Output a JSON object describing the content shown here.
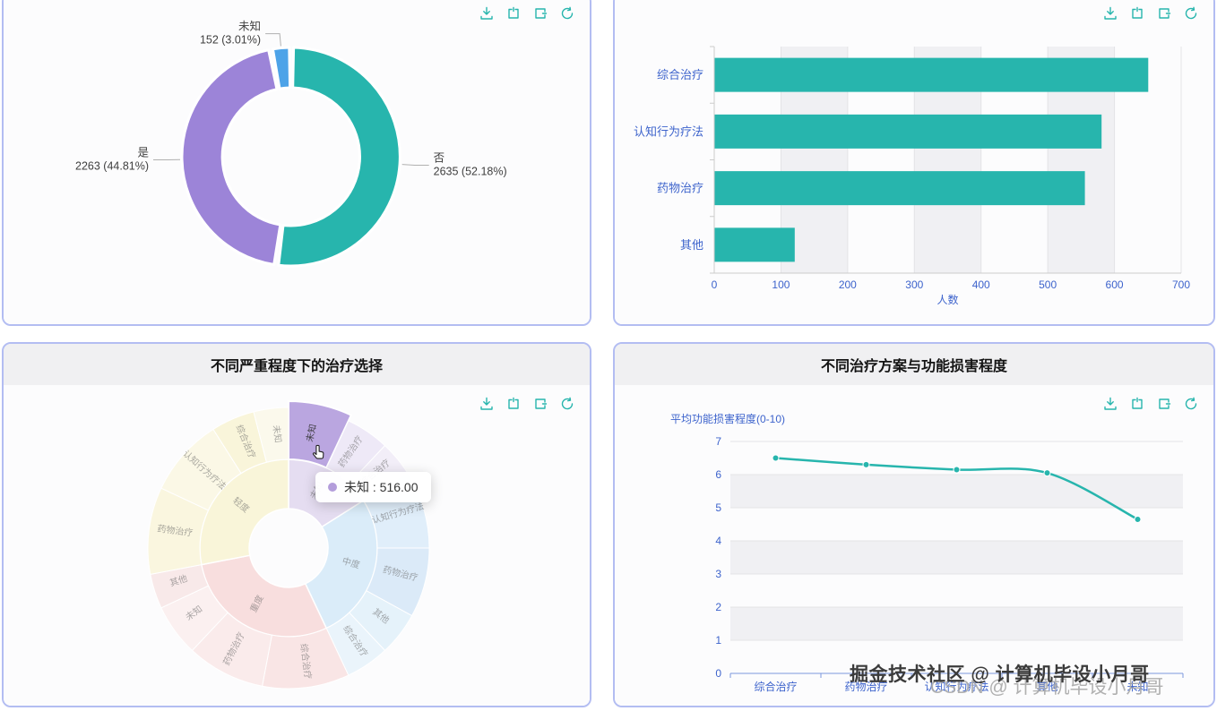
{
  "accent": {
    "teal": "#27b5ad",
    "axis_label_blue": "#3d63cc",
    "panel_border": "#b3bdf2",
    "grid_line": "#e3e3e6",
    "split_area": "#f0f0f3"
  },
  "toolbox": {
    "icons": [
      "save-image-icon",
      "data-zoom-icon",
      "data-view-icon",
      "restore-icon"
    ]
  },
  "chart_data": [
    {
      "type": "pie",
      "panel": "top-left",
      "shape": "donut",
      "items": [
        {
          "name": "未知",
          "value": 152,
          "percent": 3.01,
          "color": "#4da3e8"
        },
        {
          "name": "否",
          "value": 2635,
          "percent": 52.18,
          "color": "#27b5ad"
        },
        {
          "name": "是",
          "value": 2263,
          "percent": 44.81,
          "color": "#9c84d8"
        }
      ]
    },
    {
      "type": "bar",
      "panel": "top-right",
      "orientation": "horizontal",
      "categories": [
        "综合治疗",
        "认知行为疗法",
        "药物治疗",
        "其他"
      ],
      "values": [
        650,
        580,
        555,
        120
      ],
      "xlabel": "人数",
      "xlim": [
        0,
        700
      ],
      "step": 100,
      "bar_color": "#27b5ad"
    },
    {
      "type": "sunburst",
      "panel": "bottom-left",
      "title": "不同严重程度下的治疗选择",
      "tooltip": {
        "name": "未知",
        "value": "516.00",
        "text": "未知 : 516.00",
        "color": "#b39ddb"
      },
      "inner": [
        {
          "label": "未知",
          "span": 16,
          "color": "#b39ddb"
        },
        {
          "label": "中度",
          "span": 27,
          "color": "#93c9f2"
        },
        {
          "label": "重度",
          "span": 29,
          "color": "#ee9f9f"
        },
        {
          "label": "轻度",
          "span": 28,
          "color": "#f4e58f"
        }
      ],
      "outer": [
        {
          "label": "未知",
          "span": 7,
          "color": "#b6a1de",
          "hovered": true
        },
        {
          "label": "药物治疗",
          "span": 5,
          "color": "#cdbcea"
        },
        {
          "label": "综合治疗",
          "span": 4,
          "color": "#dacdf0"
        },
        {
          "label": "认知行为疗法",
          "span": 9,
          "color": "#9ecef5"
        },
        {
          "label": "药物治疗",
          "span": 8,
          "color": "#8fc1ee"
        },
        {
          "label": "其他",
          "span": 5,
          "color": "#aedaf4"
        },
        {
          "label": "综合治疗",
          "span": 5,
          "color": "#bfe2f7"
        },
        {
          "label": "综合治疗",
          "span": 10,
          "color": "#f2aeae"
        },
        {
          "label": "药物治疗",
          "span": 9,
          "color": "#f6c2c2"
        },
        {
          "label": "未知",
          "span": 6,
          "color": "#f9d3d3"
        },
        {
          "label": "其他",
          "span": 4,
          "color": "#f0bcbc"
        },
        {
          "label": "药物治疗",
          "span": 10,
          "color": "#f5e79c"
        },
        {
          "label": "认知行为疗法",
          "span": 9,
          "color": "#f8eeb4"
        },
        {
          "label": "综合治疗",
          "span": 5,
          "color": "#f3e38a"
        },
        {
          "label": "未知",
          "span": 4,
          "color": "#faf2c6"
        }
      ]
    },
    {
      "type": "line",
      "panel": "bottom-right",
      "title": "不同治疗方案与功能损害程度",
      "ylabel": "平均功能损害程度(0-10)",
      "categories": [
        "综合治疗",
        "药物治疗",
        "认知行为疗法",
        "其他",
        "未知"
      ],
      "values": [
        6.5,
        6.3,
        6.15,
        6.05,
        4.65
      ],
      "ylim": [
        0,
        7
      ],
      "ystep": 1,
      "line_color": "#27b5ad",
      "smooth": true
    }
  ],
  "watermark": {
    "primary": "掘金技术社区 @ 计算机毕设小月哥",
    "secondary": "CSDN @ 计算机毕设小月哥"
  }
}
